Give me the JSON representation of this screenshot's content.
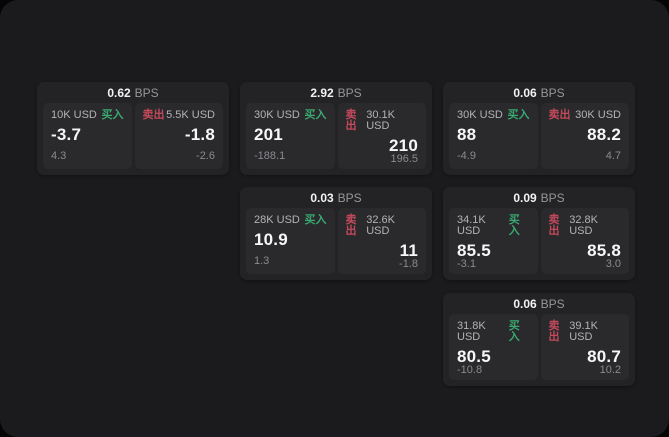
{
  "labels": {
    "buy": "买入",
    "sell": "卖出",
    "bps_unit": "BPS"
  },
  "colors": {
    "page_bg": "#1b1b1d",
    "card_bg": "#232325",
    "panel_bg": "#2a2a2d",
    "buy_green": "#3aa870",
    "sell_red": "#c4495a",
    "value_white": "#f7f7f9",
    "muted_gray": "#8b8b8f"
  },
  "cards": [
    {
      "bps": "0.62",
      "buy": {
        "amount": "10K USD",
        "value": "-3.7",
        "delta": "4.3"
      },
      "sell": {
        "amount": "5.5K USD",
        "value": "-1.8",
        "delta": "-2.6"
      }
    },
    {
      "bps": "2.92",
      "buy": {
        "amount": "30K USD",
        "value": "201",
        "delta": "-188.1"
      },
      "sell": {
        "amount": "30.1K USD",
        "value": "210",
        "delta": "196.5"
      }
    },
    {
      "bps": "0.06",
      "buy": {
        "amount": "30K USD",
        "value": "88",
        "delta": "-4.9"
      },
      "sell": {
        "amount": "30K USD",
        "value": "88.2",
        "delta": "4.7"
      }
    },
    {
      "bps": "0.03",
      "buy": {
        "amount": "28K USD",
        "value": "10.9",
        "delta": "1.3"
      },
      "sell": {
        "amount": "32.6K USD",
        "value": "11",
        "delta": "-1.8"
      }
    },
    {
      "bps": "0.09",
      "buy": {
        "amount": "34.1K USD",
        "value": "85.5",
        "delta": "-3.1"
      },
      "sell": {
        "amount": "32.8K USD",
        "value": "85.8",
        "delta": "3.0"
      }
    },
    {
      "bps": "0.06",
      "buy": {
        "amount": "31.8K USD",
        "value": "80.5",
        "delta": "-10.8"
      },
      "sell": {
        "amount": "39.1K USD",
        "value": "80.7",
        "delta": "10.2"
      }
    }
  ]
}
